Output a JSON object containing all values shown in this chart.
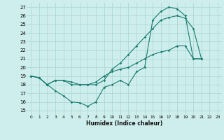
{
  "xlabel": "Humidex (Indice chaleur)",
  "bg_color": "#ceeeed",
  "grid_color": "#aed8d6",
  "line_color": "#1a7a6e",
  "xlim": [
    -0.5,
    23.5
  ],
  "ylim": [
    14.5,
    27.5
  ],
  "xticks": [
    0,
    1,
    2,
    3,
    4,
    5,
    6,
    7,
    8,
    9,
    10,
    11,
    12,
    13,
    14,
    15,
    16,
    17,
    18,
    19,
    20,
    21,
    22,
    23
  ],
  "yticks": [
    15,
    16,
    17,
    18,
    19,
    20,
    21,
    22,
    23,
    24,
    25,
    26,
    27
  ],
  "line1_x": [
    0,
    1,
    2,
    3,
    4,
    5,
    6,
    7,
    8,
    9,
    10,
    11,
    12,
    13,
    14,
    15,
    16,
    17,
    18,
    19,
    20,
    21
  ],
  "line1_y": [
    19,
    18.8,
    18,
    17.3,
    16.7,
    16.0,
    15.9,
    15.5,
    16.0,
    17.7,
    18.0,
    18.5,
    18.0,
    19.5,
    20.0,
    25.5,
    26.5,
    27.0,
    26.8,
    26.0,
    21.0,
    21.0
  ],
  "line2_x": [
    0,
    1,
    2,
    3,
    4,
    5,
    6,
    7,
    8,
    9,
    10,
    11,
    12,
    13,
    14,
    15,
    16,
    17,
    18,
    19,
    20,
    21
  ],
  "line2_y": [
    19,
    18.8,
    18,
    18.5,
    18.5,
    18.0,
    18.0,
    18.0,
    18.0,
    18.5,
    19.8,
    20.5,
    21.5,
    22.5,
    23.5,
    24.5,
    25.5,
    25.8,
    26.0,
    25.7,
    24.5,
    21.0
  ],
  "line3_x": [
    0,
    1,
    2,
    3,
    4,
    5,
    6,
    7,
    8,
    9,
    10,
    11,
    12,
    13,
    14,
    15,
    16,
    17,
    18,
    19,
    20,
    21
  ],
  "line3_y": [
    19,
    18.8,
    18,
    18.5,
    18.5,
    18.3,
    18.0,
    18.0,
    18.3,
    19.0,
    19.5,
    19.8,
    20.0,
    20.5,
    21.0,
    21.5,
    21.8,
    22.0,
    22.5,
    22.5,
    21.0,
    21.0
  ]
}
